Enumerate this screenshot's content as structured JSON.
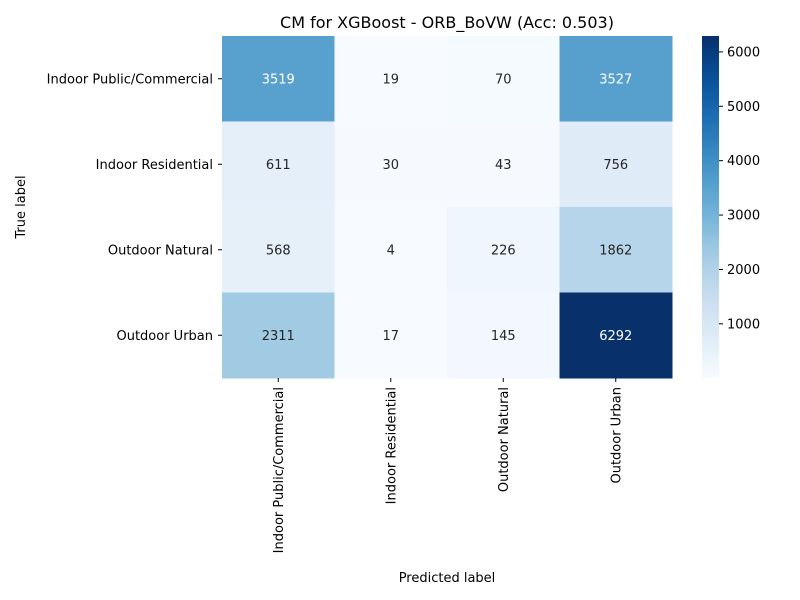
{
  "chart_data": {
    "type": "heatmap",
    "title": "CM for XGBoost - ORB_BoVW (Acc: 0.503)",
    "xlabel": "Predicted label",
    "ylabel": "True label",
    "row_labels": [
      "Indoor Public/Commercial",
      "Indoor Residential",
      "Outdoor Natural",
      "Outdoor Urban"
    ],
    "col_labels": [
      "Indoor Public/Commercial",
      "Indoor Residential",
      "Outdoor Natural",
      "Outdoor Urban"
    ],
    "values": [
      [
        3519,
        19,
        70,
        3527
      ],
      [
        611,
        30,
        43,
        756
      ],
      [
        568,
        4,
        226,
        1862
      ],
      [
        2311,
        17,
        145,
        6292
      ]
    ],
    "colormap": "Blues",
    "colorbar": {
      "min": 4,
      "max": 6292,
      "ticks": [
        1000,
        2000,
        3000,
        4000,
        5000,
        6000
      ]
    }
  }
}
